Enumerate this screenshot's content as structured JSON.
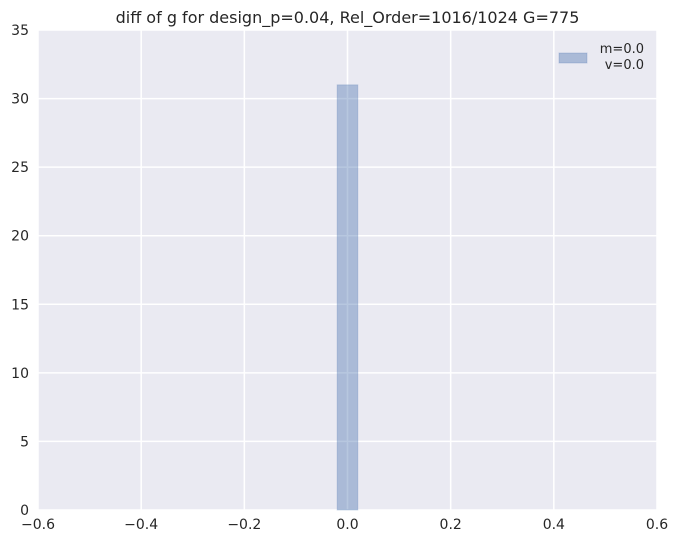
{
  "chart_data": {
    "type": "bar",
    "title": "diff of g for design_p=0.04, Rel_Order=1016/1024 G=775",
    "xlabel": "",
    "ylabel": "",
    "xlim": [
      -0.6,
      0.6
    ],
    "ylim": [
      0,
      35
    ],
    "x_ticks": [
      "−0.6",
      "−0.4",
      "−0.2",
      "0.0",
      "0.2",
      "0.4",
      "0.6"
    ],
    "x_tick_values": [
      -0.6,
      -0.4,
      -0.2,
      0.0,
      0.2,
      0.4,
      0.6
    ],
    "y_ticks": [
      "0",
      "5",
      "10",
      "15",
      "20",
      "25",
      "30",
      "35"
    ],
    "y_tick_values": [
      0,
      5,
      10,
      15,
      20,
      25,
      30,
      35
    ],
    "grid": true,
    "bars": [
      {
        "x_start": -0.02,
        "x_end": 0.02,
        "value": 31
      }
    ],
    "legend": {
      "placement": "top-right",
      "lines": [
        "m=0.0",
        "v=0.0"
      ]
    },
    "colors": {
      "background": "#eaeaf2",
      "grid": "#ffffff",
      "bar_fill": "#4c72b0",
      "bar_fill_opacity": 0.4
    }
  }
}
